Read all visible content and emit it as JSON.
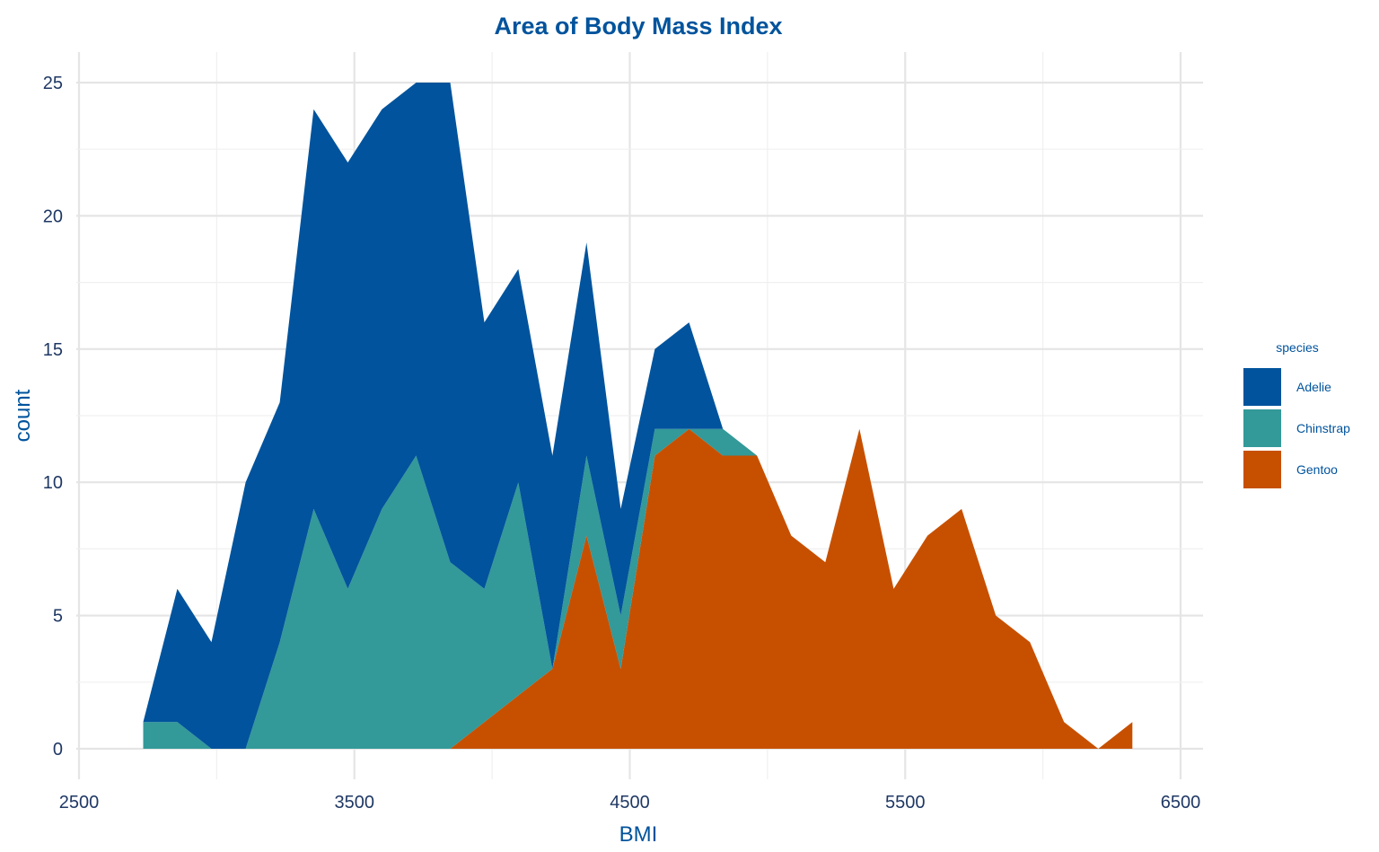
{
  "chart_data": {
    "type": "area",
    "stacked": true,
    "title": "Area of Body Mass Index",
    "xlabel": "BMI",
    "ylabel": "count",
    "xlim": [
      2500,
      6500
    ],
    "ylim": [
      0,
      25
    ],
    "x_ticks": [
      2500,
      3500,
      4500,
      5500,
      6500
    ],
    "y_ticks": [
      0,
      5,
      10,
      15,
      20,
      25
    ],
    "grid": true,
    "legend": {
      "title": "species",
      "position": "right"
    },
    "x": [
      2733,
      2857,
      2981,
      3105,
      3229,
      3352,
      3476,
      3600,
      3724,
      3848,
      3972,
      4095,
      4219,
      4343,
      4467,
      4591,
      4715,
      4838,
      4962,
      5086,
      5210,
      5334,
      5458,
      5581,
      5705,
      5829,
      5953,
      6077,
      6201,
      6325
    ],
    "series": [
      {
        "name": "Adelie",
        "color": "#00539c",
        "values": [
          0,
          5,
          4,
          10,
          9,
          15,
          16,
          15,
          14,
          18,
          10,
          8,
          8,
          8,
          4,
          3,
          4,
          0,
          0,
          0,
          0,
          0,
          0,
          0,
          0,
          0,
          0,
          0,
          0,
          0
        ]
      },
      {
        "name": "Chinstrap",
        "color": "#339999",
        "values": [
          1,
          1,
          0,
          0,
          4,
          9,
          6,
          9,
          11,
          7,
          5,
          8,
          0,
          3,
          2,
          1,
          0,
          1,
          0,
          0,
          0,
          0,
          0,
          0,
          0,
          0,
          0,
          0,
          0,
          0
        ]
      },
      {
        "name": "Gentoo",
        "color": "#c75000",
        "values": [
          0,
          0,
          0,
          0,
          0,
          0,
          0,
          0,
          0,
          0,
          1,
          2,
          3,
          8,
          3,
          11,
          12,
          11,
          11,
          8,
          7,
          12,
          6,
          8,
          9,
          5,
          4,
          1,
          0,
          1
        ]
      }
    ]
  }
}
